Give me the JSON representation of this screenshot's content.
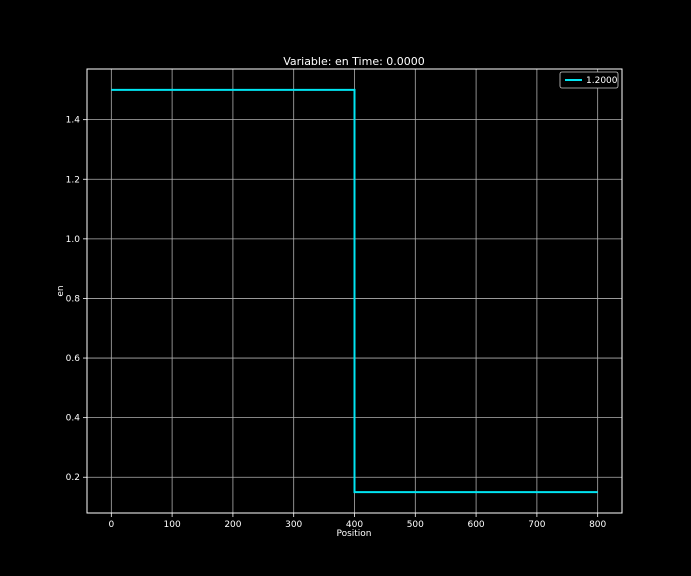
{
  "chart_data": {
    "type": "line",
    "title": "Variable: en Time: 0.0000",
    "xlabel": "Position",
    "ylabel": "en",
    "xlim": [
      -40,
      840
    ],
    "ylim": [
      0.08,
      1.57
    ],
    "xticks": [
      0,
      100,
      200,
      300,
      400,
      500,
      600,
      700,
      800
    ],
    "yticks": [
      0.2,
      0.4,
      0.6,
      0.8,
      1.0,
      1.2,
      1.4
    ],
    "xtick_labels": [
      "0",
      "100",
      "200",
      "300",
      "400",
      "500",
      "600",
      "700",
      "800"
    ],
    "ytick_labels": [
      "0.2",
      "0.4",
      "0.6",
      "0.8",
      "1.0",
      "1.2",
      "1.4"
    ],
    "grid": true,
    "legend_position": "top-right",
    "series": [
      {
        "name": "1.2000",
        "color": "#00e5f2",
        "step": true,
        "x": [
          0,
          400,
          400,
          800
        ],
        "y": [
          1.5,
          1.5,
          0.15,
          0.15
        ]
      }
    ]
  }
}
